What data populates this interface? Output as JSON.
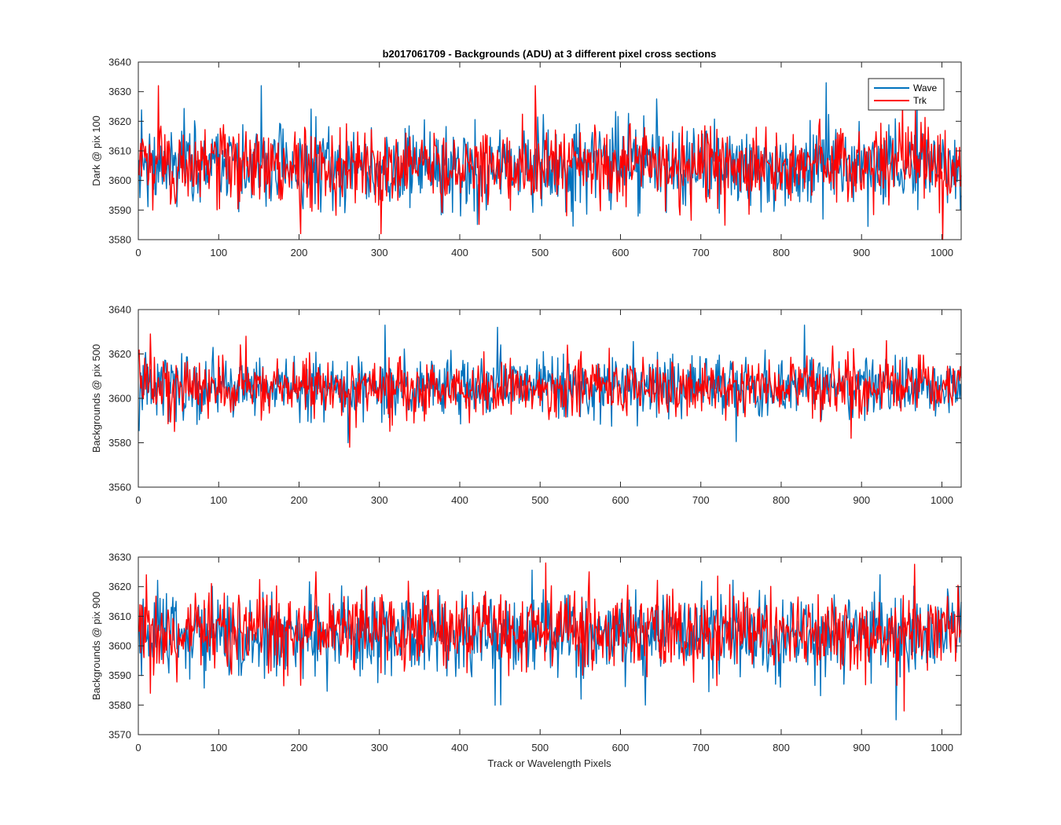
{
  "chart_data": [
    {
      "type": "line",
      "title": "b2017061709 - Backgrounds (ADU) at 3 different pixel cross sections",
      "xlabel": "",
      "ylabel": "Dark @ pix 100",
      "xlim": [
        0,
        1024
      ],
      "ylim": [
        3580,
        3640
      ],
      "xticks": [
        0,
        100,
        200,
        300,
        400,
        500,
        600,
        700,
        800,
        900,
        1000
      ],
      "yticks": [
        3580,
        3590,
        3600,
        3610,
        3620,
        3630,
        3640
      ],
      "legend": [
        "Wave",
        "Trk"
      ],
      "legend_position": "top-right",
      "series": [
        {
          "name": "Wave",
          "color": "#0072BD",
          "n_points": 1024,
          "mean": 3605,
          "sd": 7,
          "spikes": [
            [
              152,
              3632
            ],
            [
              855,
              3633
            ],
            [
              968,
              3628
            ],
            [
              400,
              3588
            ]
          ]
        },
        {
          "name": "Trk",
          "color": "#FF0000",
          "n_points": 1024,
          "mean": 3605,
          "sd": 6.5,
          "spikes": [
            [
              24,
              3632
            ],
            [
              201,
              3582
            ],
            [
              301,
              3582
            ],
            [
              493,
              3632
            ],
            [
              1000,
              3580
            ],
            [
              950,
              3626
            ]
          ]
        }
      ]
    },
    {
      "type": "line",
      "title": "",
      "xlabel": "",
      "ylabel": "Backgrounds @ pix 500",
      "xlim": [
        0,
        1024
      ],
      "ylim": [
        3560,
        3640
      ],
      "xticks": [
        0,
        100,
        200,
        300,
        400,
        500,
        600,
        700,
        800,
        900,
        1000
      ],
      "yticks": [
        3560,
        3580,
        3600,
        3620,
        3640
      ],
      "series": [
        {
          "name": "Wave",
          "color": "#0072BD",
          "n_points": 1024,
          "mean": 3605,
          "sd": 7,
          "spikes": [
            [
              306,
              3633
            ],
            [
              446,
              3632
            ],
            [
              828,
              3633
            ],
            [
              260,
              3580
            ]
          ]
        },
        {
          "name": "Trk",
          "color": "#FF0000",
          "n_points": 1024,
          "mean": 3605,
          "sd": 6.5,
          "spikes": [
            [
              14,
              3629
            ],
            [
              133,
              3628
            ],
            [
              262,
              3578
            ],
            [
              886,
              3582
            ],
            [
              930,
              3626
            ]
          ]
        }
      ]
    },
    {
      "type": "line",
      "title": "",
      "xlabel": "Track or Wavelength Pixels",
      "ylabel": "Backgrounds @ pix 900",
      "xlim": [
        0,
        1024
      ],
      "ylim": [
        3570,
        3630
      ],
      "xticks": [
        0,
        100,
        200,
        300,
        400,
        500,
        600,
        700,
        800,
        900,
        1000
      ],
      "yticks": [
        3570,
        3580,
        3590,
        3600,
        3610,
        3620,
        3630
      ],
      "series": [
        {
          "name": "Wave",
          "color": "#0072BD",
          "n_points": 1024,
          "mean": 3604,
          "sd": 7,
          "spikes": [
            [
              942,
              3575
            ],
            [
              1020,
              3620
            ],
            [
              550,
              3582
            ],
            [
              630,
              3580
            ]
          ]
        },
        {
          "name": "Trk",
          "color": "#FF0000",
          "n_points": 1024,
          "mean": 3605,
          "sd": 6.5,
          "spikes": [
            [
              9,
              3624
            ],
            [
              220,
              3625
            ],
            [
              506,
              3628
            ],
            [
              952,
              3578
            ],
            [
              14,
              3584
            ]
          ]
        }
      ]
    }
  ]
}
